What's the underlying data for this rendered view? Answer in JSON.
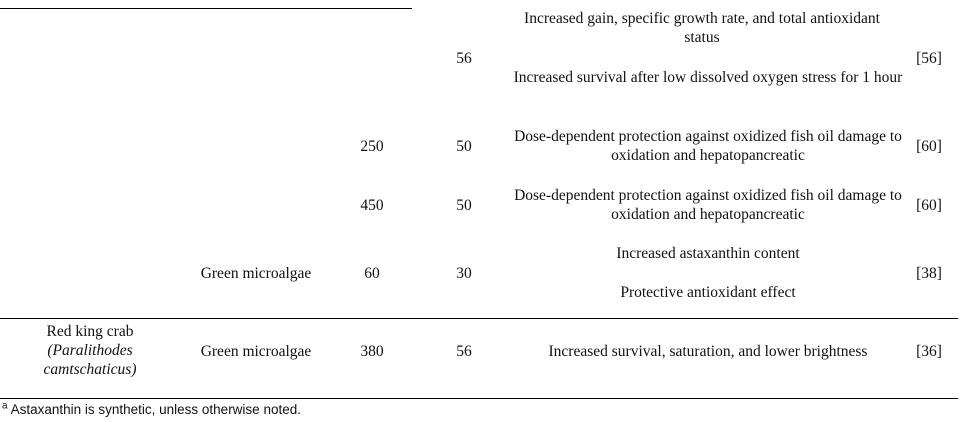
{
  "rows": [
    {
      "dose": "",
      "duration": "56",
      "effects": [
        "Increased gain, specific growth rate, and total antioxidant status",
        "Increased survival after low dissolved oxygen stress for 1 hour"
      ],
      "ref": "[56]"
    },
    {
      "dose": "250",
      "duration": "50",
      "effects": [
        "Dose-dependent protection against oxidized fish oil damage to oxidation and hepatopancreatic"
      ],
      "ref": "[60]"
    },
    {
      "dose": "450",
      "duration": "50",
      "effects": [
        "Dose-dependent protection against oxidized fish oil damage to oxidation and hepatopancreatic"
      ],
      "ref": "[60]"
    },
    {
      "source": "Green microalgae",
      "dose": "60",
      "duration": "30",
      "effects": [
        "Increased astaxanthin content",
        "Protective antioxidant effect"
      ],
      "ref": "[38]"
    },
    {
      "species_common": "Red king crab",
      "species_latin": "(Paralithodes camtschaticus)",
      "source": "Green microalgae",
      "dose": "380",
      "duration": "56",
      "effects": [
        "Increased survival, saturation, and lower brightness"
      ],
      "ref": "[36]"
    }
  ],
  "footnote": {
    "marker": "a",
    "text": " Astaxanthin is synthetic, unless otherwise noted."
  }
}
